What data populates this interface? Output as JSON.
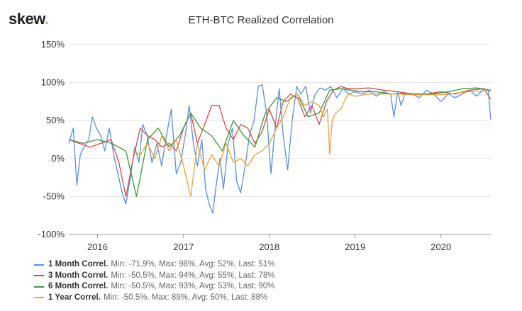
{
  "logo": {
    "text": "skew",
    "dot": "."
  },
  "chart_data": {
    "type": "line",
    "title": "ETH-BTC Realized Correlation",
    "xlabel": "",
    "ylabel": "",
    "x_start": "2015-09-01",
    "x_end": "2020-07-31",
    "x_ticks": [
      "2016",
      "2017",
      "2018",
      "2019",
      "2020"
    ],
    "y_ticks": [
      "150%",
      "100%",
      "50%",
      "0%",
      "-50%",
      "-100%"
    ],
    "ylim": [
      -100,
      150
    ],
    "grid": "horizontal",
    "legend_position": "bottom-left",
    "series": [
      {
        "name": "1 Month Correl.",
        "stats": "Min: -71.9%, Max: 98%, Avg: 52%, Last: 51%",
        "color": "#5b8fe0",
        "x": [
          "2015-09-01",
          "2015-09-20",
          "2015-10-05",
          "2015-10-20",
          "2015-11-05",
          "2015-11-25",
          "2015-12-10",
          "2015-12-28",
          "2016-01-15",
          "2016-02-01",
          "2016-02-20",
          "2016-03-10",
          "2016-03-28",
          "2016-04-15",
          "2016-05-01",
          "2016-05-20",
          "2016-06-08",
          "2016-06-25",
          "2016-07-12",
          "2016-07-30",
          "2016-08-20",
          "2016-09-10",
          "2016-09-30",
          "2016-10-20",
          "2016-11-10",
          "2016-12-01",
          "2016-12-20",
          "2017-01-08",
          "2017-01-25",
          "2017-02-12",
          "2017-03-01",
          "2017-03-20",
          "2017-04-05",
          "2017-04-20",
          "2017-05-05",
          "2017-05-20",
          "2017-06-05",
          "2017-06-20",
          "2017-07-10",
          "2017-07-28",
          "2017-08-15",
          "2017-09-01",
          "2017-09-20",
          "2017-10-08",
          "2017-10-28",
          "2017-11-15",
          "2017-12-02",
          "2017-12-20",
          "2018-01-08",
          "2018-01-25",
          "2018-02-12",
          "2018-03-01",
          "2018-03-20",
          "2018-04-08",
          "2018-04-28",
          "2018-05-15",
          "2018-06-05",
          "2018-06-25",
          "2018-07-15",
          "2018-08-05",
          "2018-08-28",
          "2018-09-20",
          "2018-10-15",
          "2018-11-10",
          "2018-12-05",
          "2019-01-01",
          "2019-02-01",
          "2019-03-01",
          "2019-04-01",
          "2019-05-01",
          "2019-06-01",
          "2019-06-15",
          "2019-07-01",
          "2019-07-15",
          "2019-08-01",
          "2019-09-01",
          "2019-10-01",
          "2019-11-01",
          "2019-12-01",
          "2020-01-01",
          "2020-02-01",
          "2020-03-01",
          "2020-04-01",
          "2020-05-01",
          "2020-06-01",
          "2020-07-01",
          "2020-07-20",
          "2020-07-31"
        ],
        "values": [
          20,
          40,
          -35,
          5,
          15,
          25,
          55,
          40,
          30,
          10,
          40,
          5,
          -20,
          -45,
          -60,
          -25,
          15,
          -5,
          45,
          30,
          -5,
          20,
          -10,
          30,
          65,
          -20,
          -5,
          30,
          70,
          20,
          -10,
          25,
          -40,
          -60,
          -72,
          -35,
          0,
          -40,
          20,
          40,
          -30,
          -45,
          -10,
          30,
          50,
          95,
          97,
          60,
          -20,
          40,
          92,
          30,
          -15,
          50,
          95,
          85,
          95,
          60,
          85,
          93,
          90,
          95,
          80,
          92,
          85,
          88,
          85,
          90,
          82,
          88,
          85,
          55,
          88,
          70,
          85,
          85,
          80,
          90,
          85,
          75,
          85,
          80,
          85,
          90,
          82,
          92,
          90,
          51
        ]
      },
      {
        "name": "3 Month Correl.",
        "stats": "Min: -50.5%, Max: 94%, Avg: 55%, Last: 78%",
        "color": "#d24a4a",
        "x": [
          "2015-09-01",
          "2015-10-15",
          "2015-12-01",
          "2016-01-15",
          "2016-02-28",
          "2016-04-01",
          "2016-05-01",
          "2016-06-01",
          "2016-07-01",
          "2016-08-01",
          "2016-09-01",
          "2016-10-01",
          "2016-11-01",
          "2016-12-01",
          "2017-01-01",
          "2017-02-01",
          "2017-03-01",
          "2017-04-01",
          "2017-05-01",
          "2017-06-01",
          "2017-07-01",
          "2017-08-01",
          "2017-09-01",
          "2017-10-01",
          "2017-11-01",
          "2017-12-01",
          "2018-01-01",
          "2018-02-01",
          "2018-03-01",
          "2018-04-01",
          "2018-05-01",
          "2018-06-01",
          "2018-07-01",
          "2018-08-01",
          "2018-09-01",
          "2018-10-01",
          "2018-11-01",
          "2018-12-01",
          "2019-01-01",
          "2019-03-01",
          "2019-05-01",
          "2019-07-01",
          "2019-09-01",
          "2019-11-01",
          "2020-01-01",
          "2020-03-01",
          "2020-05-01",
          "2020-07-01",
          "2020-07-31"
        ],
        "values": [
          25,
          20,
          15,
          20,
          25,
          -5,
          -50,
          0,
          40,
          30,
          25,
          15,
          20,
          10,
          40,
          60,
          20,
          45,
          70,
          70,
          40,
          25,
          45,
          40,
          20,
          35,
          65,
          40,
          75,
          85,
          80,
          55,
          70,
          45,
          75,
          90,
          95,
          92,
          92,
          93,
          90,
          88,
          85,
          85,
          88,
          85,
          90,
          92,
          78
        ]
      },
      {
        "name": "6 Month Correl.",
        "stats": "Min: -50.5%, Max: 93%, Avg: 53%, Last: 90%",
        "color": "#3a9a3a",
        "x": [
          "2015-09-01",
          "2015-11-01",
          "2016-01-01",
          "2016-03-01",
          "2016-05-01",
          "2016-06-15",
          "2016-08-01",
          "2016-09-15",
          "2016-11-01",
          "2016-12-15",
          "2017-02-01",
          "2017-03-15",
          "2017-05-01",
          "2017-06-15",
          "2017-08-01",
          "2017-09-15",
          "2017-11-01",
          "2017-12-15",
          "2018-02-01",
          "2018-03-15",
          "2018-05-01",
          "2018-06-15",
          "2018-08-01",
          "2018-09-15",
          "2018-11-01",
          "2018-12-15",
          "2019-02-01",
          "2019-04-01",
          "2019-06-01",
          "2019-08-01",
          "2019-10-01",
          "2019-12-01",
          "2020-02-01",
          "2020-04-01",
          "2020-06-01",
          "2020-07-31"
        ],
        "values": [
          25,
          20,
          25,
          20,
          10,
          -50,
          25,
          40,
          15,
          30,
          60,
          40,
          30,
          10,
          50,
          30,
          15,
          60,
          80,
          75,
          85,
          55,
          60,
          90,
          92,
          90,
          88,
          88,
          85,
          86,
          85,
          85,
          88,
          92,
          93,
          90
        ]
      },
      {
        "name": "1 Year Correl.",
        "stats": "Min: -50.5%, Max: 89%, Avg: 50%, Last: 88%",
        "color": "#e8a23c",
        "x": [
          "2016-06-01",
          "2016-07-01",
          "2016-08-01",
          "2016-09-01",
          "2016-10-01",
          "2016-11-01",
          "2016-12-01",
          "2017-01-01",
          "2017-02-01",
          "2017-03-01",
          "2017-04-01",
          "2017-05-01",
          "2017-06-01",
          "2017-07-01",
          "2017-08-01",
          "2017-09-01",
          "2017-10-01",
          "2017-11-01",
          "2017-12-01",
          "2018-01-01",
          "2018-02-01",
          "2018-03-01",
          "2018-04-01",
          "2018-05-01",
          "2018-06-01",
          "2018-07-01",
          "2018-08-01",
          "2018-08-20",
          "2018-09-05",
          "2018-09-15",
          "2018-09-25",
          "2018-10-10",
          "2018-11-01",
          "2018-12-01",
          "2019-01-01",
          "2019-03-01",
          "2019-05-01",
          "2019-07-01",
          "2019-09-01",
          "2019-11-01",
          "2020-01-01",
          "2020-03-01",
          "2020-05-01",
          "2020-07-01",
          "2020-07-31"
        ],
        "values": [
          10,
          5,
          20,
          0,
          30,
          10,
          25,
          -10,
          -50,
          20,
          -15,
          5,
          -10,
          20,
          -5,
          0,
          -10,
          5,
          10,
          20,
          40,
          55,
          80,
          85,
          70,
          75,
          70,
          55,
          65,
          5,
          50,
          60,
          65,
          85,
          82,
          85,
          85,
          85,
          84,
          84,
          84,
          86,
          88,
          89,
          88
        ]
      }
    ]
  }
}
